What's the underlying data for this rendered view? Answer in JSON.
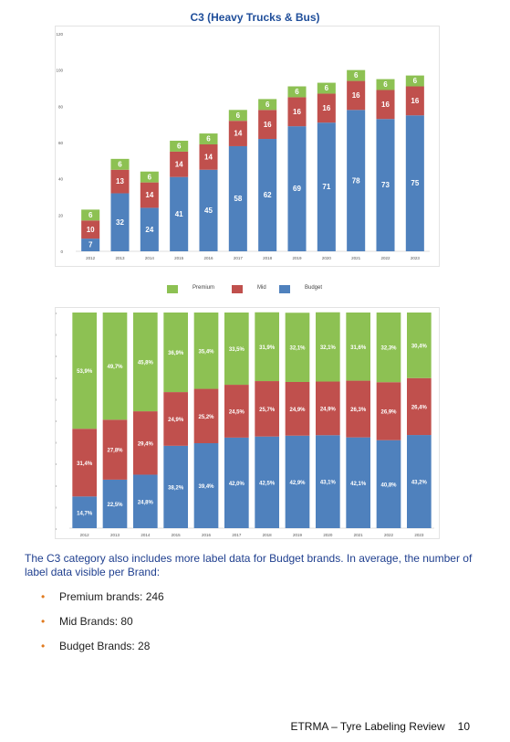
{
  "title": "C3 (Heavy Trucks & Bus)",
  "colors": {
    "premium": "#8dc153",
    "mid": "#c0504d",
    "budget": "#4f81bd"
  },
  "legend": {
    "premium": "Premium",
    "mid": "Mid",
    "budget": "Budget"
  },
  "chart_data": [
    {
      "type": "bar",
      "stacked": true,
      "categories": [
        "2012",
        "2013",
        "2014",
        "2015",
        "2016",
        "2017",
        "2018",
        "2019",
        "2020",
        "2021",
        "2022",
        "2023"
      ],
      "series": [
        {
          "name": "Budget",
          "values": [
            7,
            32,
            24,
            41,
            45,
            58,
            62,
            69,
            71,
            78,
            73,
            75
          ],
          "labels": [
            "7",
            "32",
            "24",
            "41",
            "45",
            "58",
            "62",
            "69",
            "71",
            "78",
            "73",
            "75"
          ]
        },
        {
          "name": "Mid",
          "values": [
            10,
            13,
            14,
            14,
            14,
            14,
            16,
            16,
            16,
            16,
            16,
            16
          ],
          "labels": [
            "10",
            "13",
            "14",
            "14",
            "14",
            "14",
            "16",
            "16",
            "16",
            "16",
            "16",
            "16"
          ]
        },
        {
          "name": "Premium",
          "values": [
            6,
            6,
            6,
            6,
            6,
            6,
            6,
            6,
            6,
            6,
            6,
            6
          ],
          "labels": [
            "6",
            "6",
            "6",
            "6",
            "6",
            "6",
            "6",
            "6",
            "6",
            "6",
            "6",
            "6"
          ]
        }
      ],
      "ylim": [
        0,
        120
      ],
      "yticks": [
        "0",
        "20",
        "40",
        "60",
        "80",
        "100",
        "120"
      ],
      "grid": false,
      "legend_position": "bottom"
    },
    {
      "type": "bar",
      "stacked": true,
      "percent": true,
      "categories": [
        "2012",
        "2013",
        "2014",
        "2015",
        "2016",
        "2017",
        "2018",
        "2019",
        "2020",
        "2021",
        "2022",
        "2023"
      ],
      "series": [
        {
          "name": "Budget",
          "values": [
            14.7,
            22.5,
            24.8,
            38.2,
            39.4,
            42.0,
            42.5,
            42.9,
            43.1,
            42.1,
            40.8,
            43.2
          ],
          "labels": [
            "14,7%",
            "22,5%",
            "24,8%",
            "38,2%",
            "39,4%",
            "42,0%",
            "42,5%",
            "42,9%",
            "43,1%",
            "42,1%",
            "40,8%",
            "43,2%"
          ]
        },
        {
          "name": "Mid",
          "values": [
            31.4,
            27.8,
            29.4,
            24.9,
            25.2,
            24.5,
            25.7,
            24.9,
            24.9,
            26.3,
            26.9,
            26.4
          ],
          "labels": [
            "31,4%",
            "27,8%",
            "29,4%",
            "24,9%",
            "25,2%",
            "24,5%",
            "25,7%",
            "24,9%",
            "24,9%",
            "26,3%",
            "26,9%",
            "26,4%"
          ]
        },
        {
          "name": "Premium",
          "values": [
            53.9,
            49.7,
            45.8,
            36.9,
            35.4,
            33.5,
            31.9,
            32.1,
            32.1,
            31.6,
            32.3,
            30.4
          ],
          "labels": [
            "53,9%",
            "49,7%",
            "45,8%",
            "36,9%",
            "35,4%",
            "33,5%",
            "31,9%",
            "32,1%",
            "32,1%",
            "31,6%",
            "32,3%",
            "30,4%"
          ]
        }
      ],
      "ylim": [
        0,
        100
      ],
      "yticks": [
        "0%",
        "10%",
        "20%",
        "30%",
        "40%",
        "50%",
        "60%",
        "70%",
        "80%",
        "90%",
        "100%"
      ],
      "grid": false
    }
  ],
  "paragraph": "The C3 category also includes more label data for Budget brands. In average, the number of label data visible per Brand:",
  "bullets": [
    "Premium brands: 246",
    "Mid Brands: 80",
    "Budget Brands: 28"
  ],
  "footer": {
    "text": "ETRMA – Tyre Labeling Review",
    "page": "10"
  }
}
